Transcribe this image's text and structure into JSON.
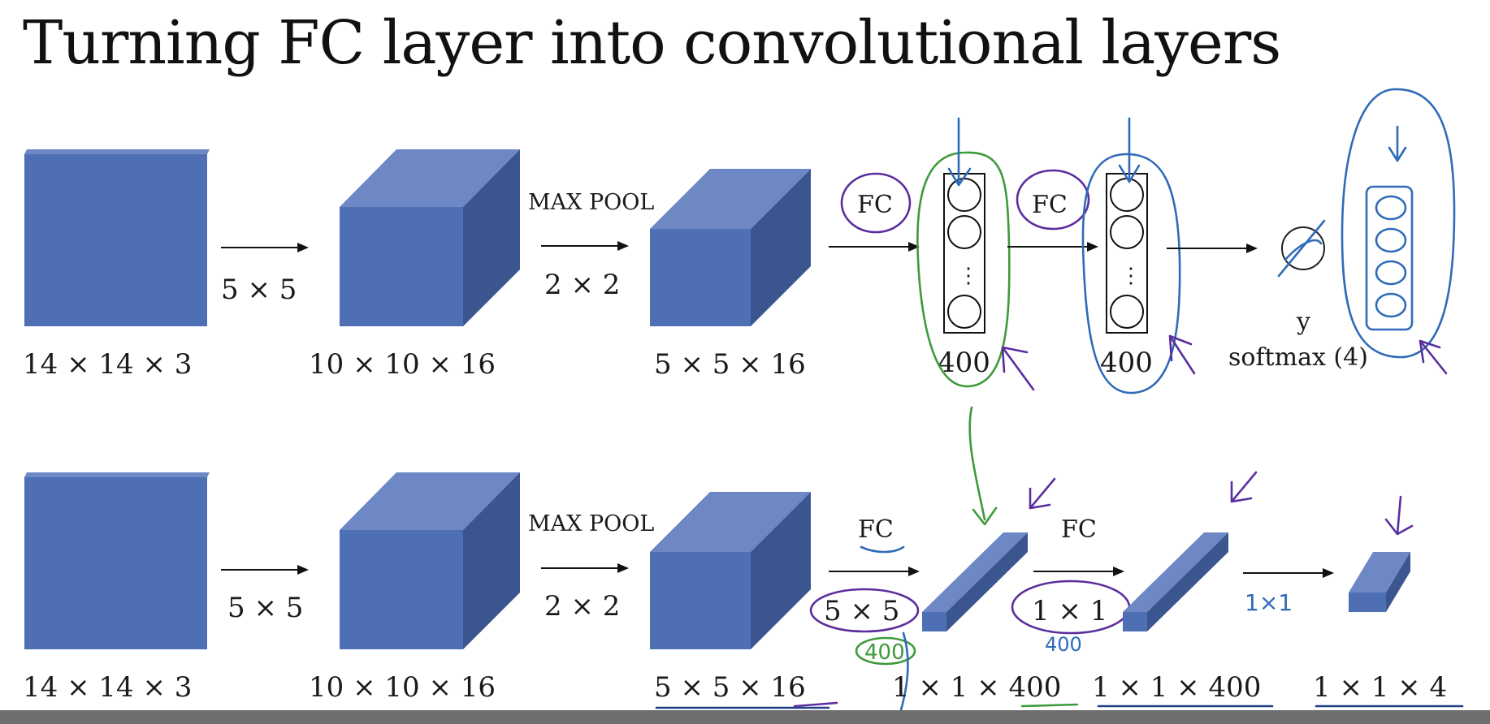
{
  "title": "Turning FC layer into convolutional layers",
  "colors": {
    "volume_front": "#4f6fb5",
    "volume_top": "#6d88c5",
    "volume_side": "#3b568f"
  },
  "top_row": {
    "input_size": "14 × 14 × 3",
    "conv_filter": "5 × 5",
    "conv_output": "10 × 10 × 16",
    "pool_op": "MAX POOL",
    "pool_size": "2 × 2",
    "pool_output": "5 × 5 × 16",
    "fc1_label": "FC",
    "fc1_units": "400",
    "fc2_label": "FC",
    "fc2_units": "400",
    "output_symbol": "y",
    "output_activation": "softmax (4)",
    "node_ellipsis": "⋮"
  },
  "bottom_row": {
    "input_size": "14 × 14 × 3",
    "conv_filter": "5 × 5",
    "conv_output": "10 × 10 × 16",
    "pool_op": "MAX POOL",
    "pool_size": "2 × 2",
    "pool_output": "5 × 5 × 16",
    "fc1_label": "FC",
    "fc1_filter": "5 × 5",
    "fc1_output": "1 × 1 × 400",
    "fc2_label": "FC",
    "fc2_filter": "1 × 1",
    "fc2_output": "1 × 1 × 400",
    "final_output": "1 × 1 × 4",
    "note_fc1_filters": "400",
    "note_fc2_filters": "400",
    "note_fc3_filter": "1×1"
  }
}
